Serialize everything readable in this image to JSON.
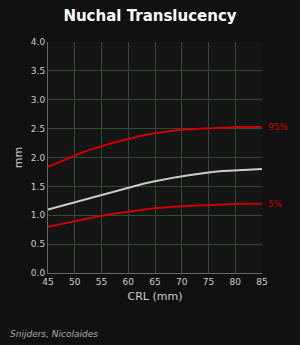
{
  "chart_data": {
    "type": "line",
    "title": "Nuchal Translucency",
    "x_label": "CRL (mm)",
    "y_label": "mm",
    "x": [
      45,
      47,
      49,
      51,
      53,
      55,
      57,
      59,
      61,
      63,
      65,
      67,
      69,
      71,
      73,
      75,
      77,
      79,
      81,
      83,
      85
    ],
    "series": [
      {
        "color": "#cc0000",
        "values": [
          1.84,
          1.92,
          2.0,
          2.07,
          2.14,
          2.2,
          2.25,
          2.3,
          2.35,
          2.39,
          2.42,
          2.45,
          2.47,
          2.49,
          2.5,
          2.51,
          2.52,
          2.52,
          2.53,
          2.53,
          2.53
        ]
      },
      {
        "color": "#cccccc",
        "values": [
          1.1,
          1.15,
          1.2,
          1.26,
          1.31,
          1.36,
          1.41,
          1.46,
          1.51,
          1.55,
          1.59,
          1.63,
          1.66,
          1.69,
          1.72,
          1.74,
          1.76,
          1.77,
          1.78,
          1.79,
          1.8
        ]
      },
      {
        "color": "#cc0000",
        "values": [
          0.8,
          0.84,
          0.88,
          0.92,
          0.96,
          0.99,
          1.02,
          1.05,
          1.08,
          1.1,
          1.12,
          1.14,
          1.15,
          1.16,
          1.17,
          1.18,
          1.19,
          1.19,
          1.2,
          1.2,
          1.2
        ]
      }
    ],
    "xlim": [
      45,
      85
    ],
    "ylim": [
      0.0,
      4.0
    ],
    "xticks": [
      45,
      50,
      55,
      60,
      65,
      70,
      75,
      80,
      85
    ],
    "yticks": [
      {
        "value": 0.0,
        "label": "0.0"
      },
      0.5,
      {
        "value": 1.0,
        "label": "1.0"
      },
      1.5,
      {
        "value": 2.0,
        "label": "2.0"
      },
      2.5,
      {
        "value": 3.0,
        "label": "3.0"
      },
      3.5,
      {
        "value": 4.0,
        "label": "4.0"
      }
    ],
    "grid": true,
    "annotations": [
      {
        "text": "95%",
        "x": 85,
        "y": 2.53,
        "color": "#cc0000"
      },
      {
        "text": "5%",
        "x": 85,
        "y": 1.2,
        "color": "#cc0000"
      },
      {
        "text": "Snijders, Nicolaides",
        "color": "#aaaaaa"
      }
    ]
  }
}
